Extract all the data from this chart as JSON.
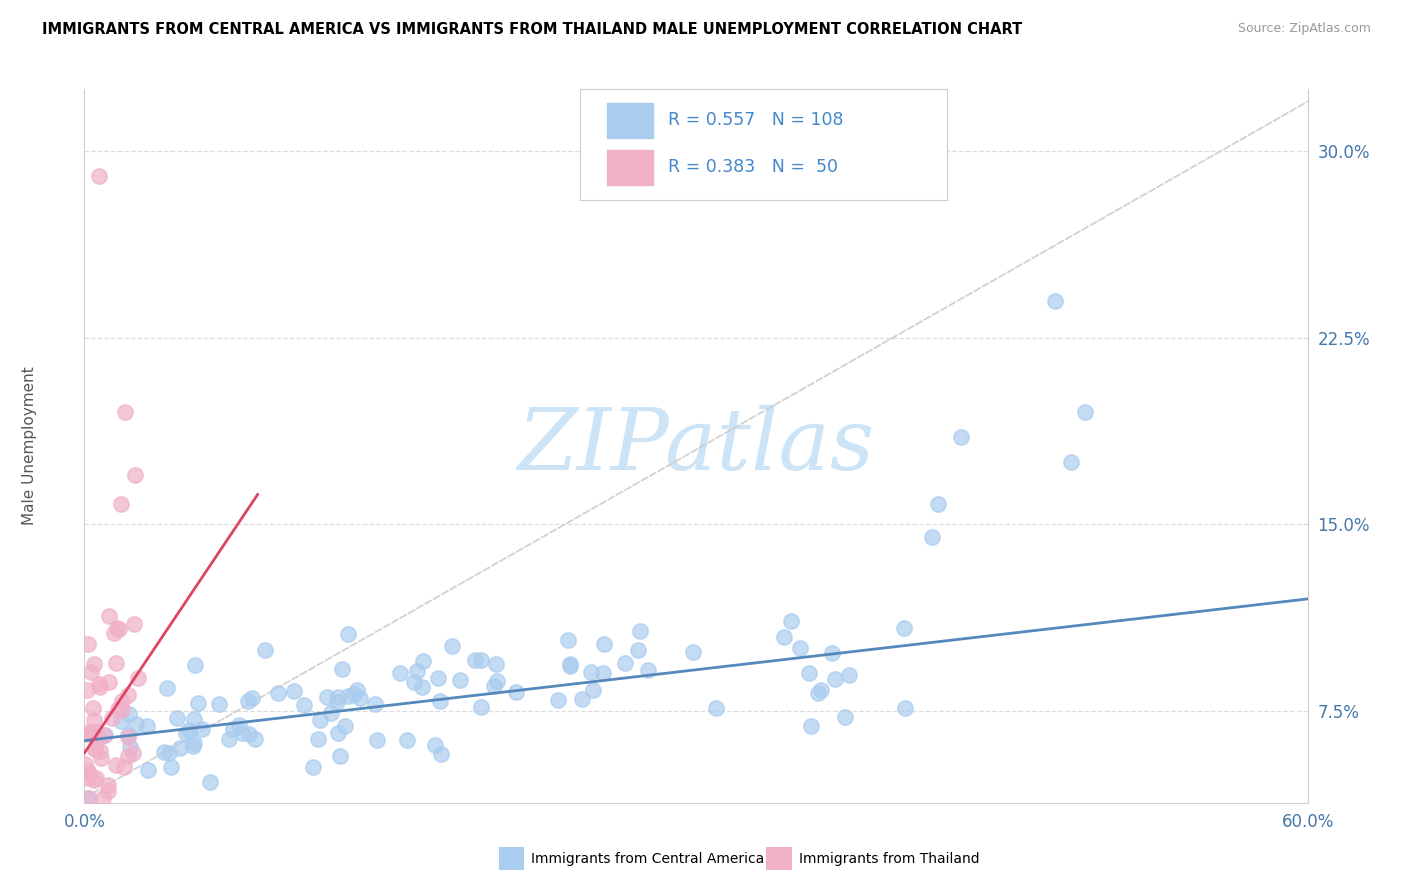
{
  "title": "IMMIGRANTS FROM CENTRAL AMERICA VS IMMIGRANTS FROM THAILAND MALE UNEMPLOYMENT CORRELATION CHART",
  "source": "Source: ZipAtlas.com",
  "ylabel": "Male Unemployment",
  "ytick_labels": [
    "7.5%",
    "15.0%",
    "22.5%",
    "30.0%"
  ],
  "ytick_values": [
    0.075,
    0.15,
    0.225,
    0.3
  ],
  "xmin": 0.0,
  "xmax": 0.6,
  "ymin": 0.038,
  "ymax": 0.325,
  "color_blue": "#aaccee",
  "color_pink": "#f0b0c8",
  "color_text_blue": "#4488cc",
  "color_text_dark": "#333333",
  "trendline_blue": "#5588bb",
  "trendline_pink": "#dd4466",
  "legend_label_1": "Immigrants from Central America",
  "legend_label_2": "Immigrants from Thailand",
  "watermark_color": "#cce4f5",
  "title_fontsize": 10.5,
  "axis_color": "#4477aa",
  "grid_color": "#dddddd",
  "bg_color": "#ffffff",
  "ref_line_color": "#cccccc"
}
